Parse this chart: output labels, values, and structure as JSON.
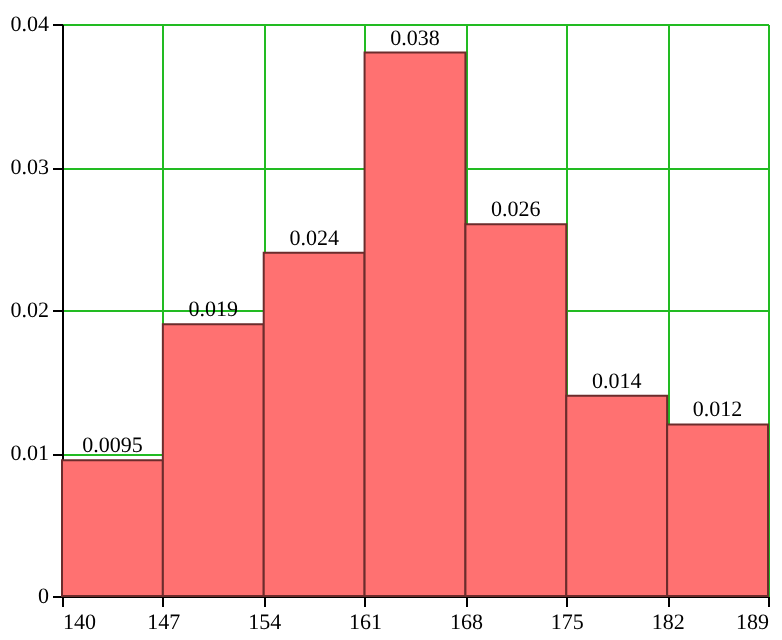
{
  "chart_data": {
    "type": "histogram",
    "bins": [
      140,
      147,
      154,
      161,
      168,
      175,
      182,
      189
    ],
    "values": [
      0.0095,
      0.019,
      0.024,
      0.038,
      0.026,
      0.014,
      0.012
    ],
    "color": "#ff7171",
    "xlim": [
      140,
      189
    ],
    "xticks": [
      140,
      147,
      154,
      161,
      168,
      175,
      182,
      189
    ],
    "ylim": [
      0,
      0.04
    ],
    "yticks": [
      0,
      0.01,
      0.02,
      0.03,
      0.04
    ],
    "grid": true,
    "data_labels": true
  }
}
